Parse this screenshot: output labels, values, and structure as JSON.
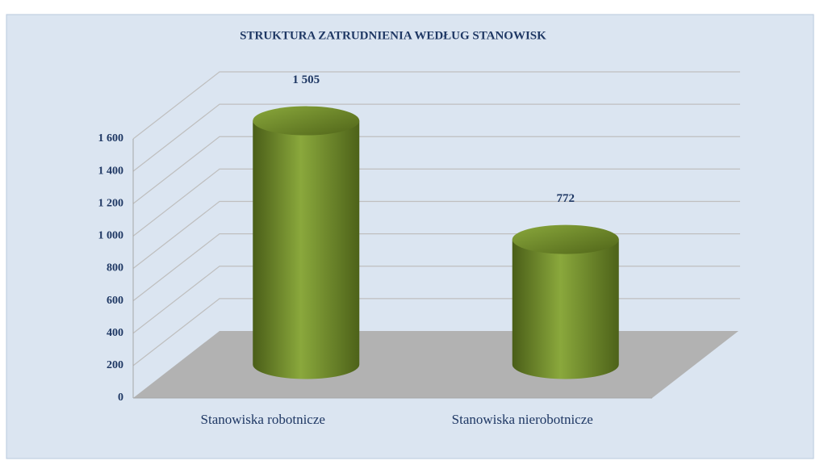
{
  "chart_data": {
    "type": "bar3d",
    "title": "STRUKTURA ZATRUDNIENIA WEDŁUG  STANOWISK",
    "categories": [
      "Stanowiska robotnicze",
      "Stanowiska nierobotnicze"
    ],
    "values": [
      1505,
      772
    ],
    "value_labels": [
      "1 505",
      "772"
    ],
    "color": "#6f8f2a",
    "ylim": [
      0,
      1600
    ],
    "yticks": [
      0,
      200,
      400,
      600,
      800,
      {
        "value": 1000,
        "label": "1 000"
      },
      {
        "value": 1200,
        "label": "1 200"
      },
      {
        "value": 1400,
        "label": "1 400"
      },
      {
        "value": 1600,
        "label": "1 600"
      }
    ],
    "grid": true
  }
}
